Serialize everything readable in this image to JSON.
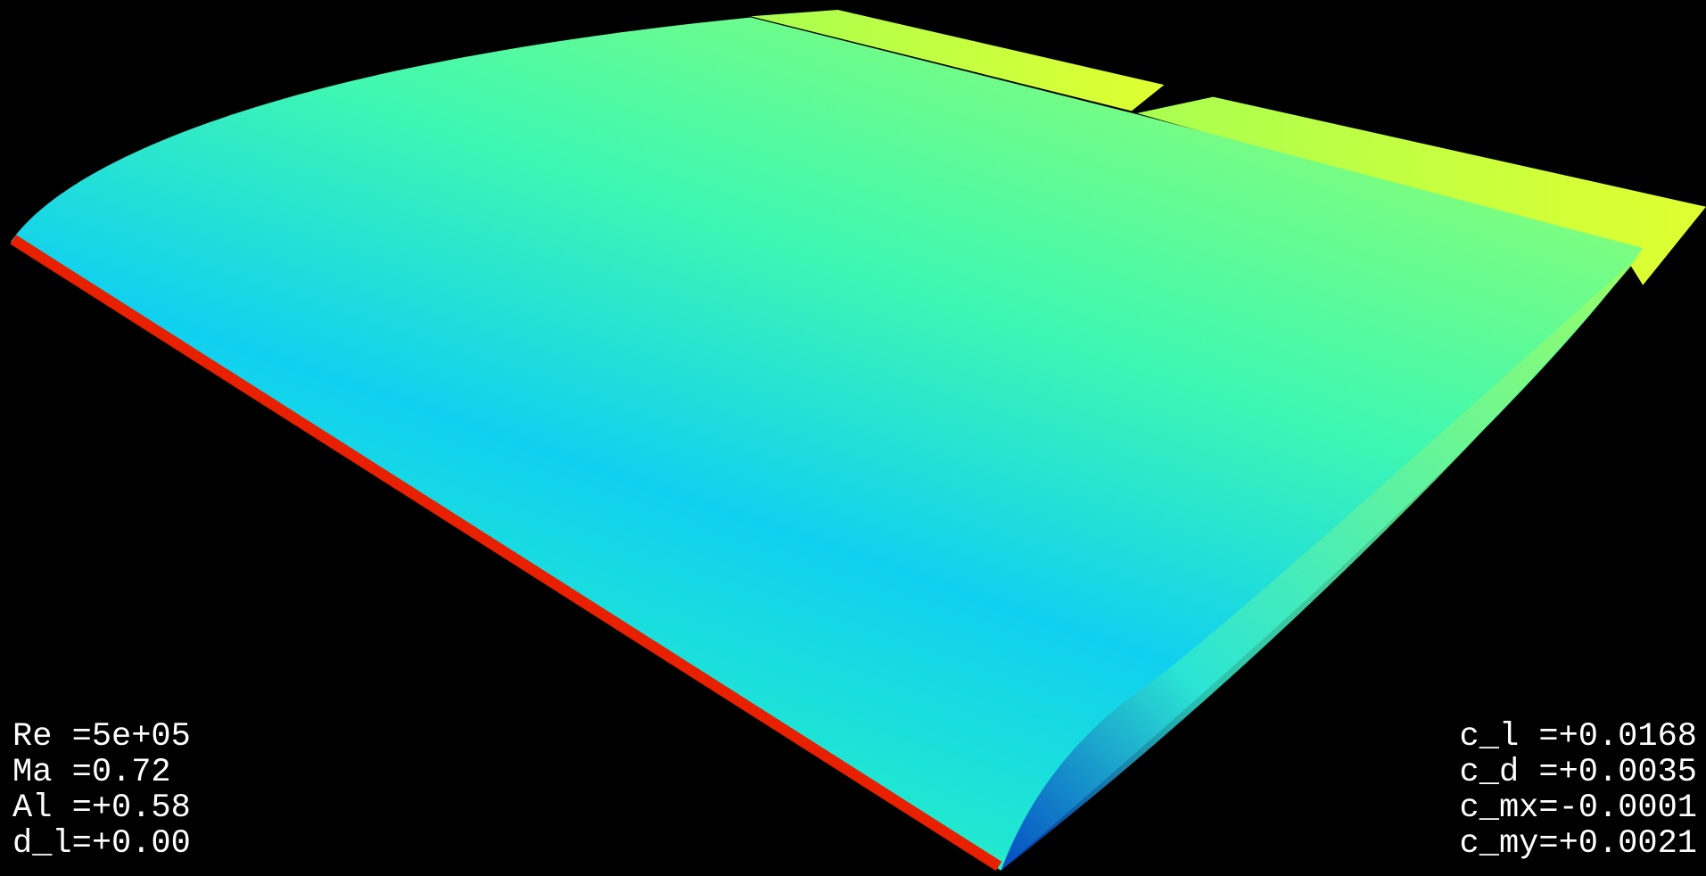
{
  "left_readout": [
    "Re =5e+05",
    "Ma =0.72",
    "Al =+0.58",
    "d_l=+0.00"
  ],
  "right_readout": [
    "c_l =+0.0168",
    "c_d =+0.0035",
    "c_mx=-0.0001",
    "c_my=+0.0021"
  ]
}
